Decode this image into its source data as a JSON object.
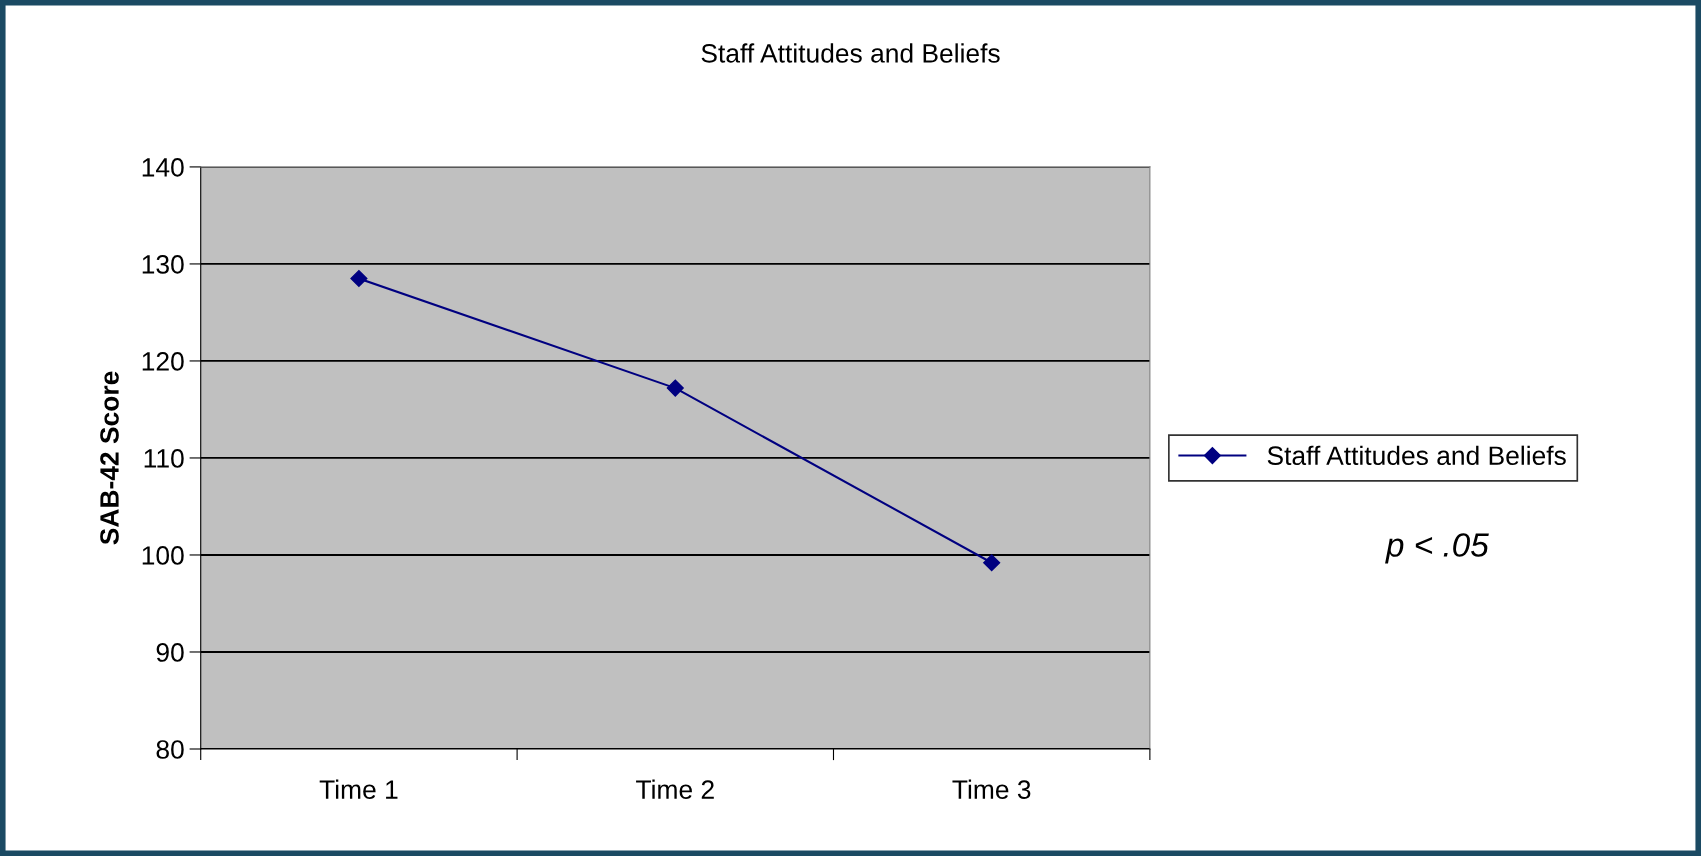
{
  "chart_data": {
    "type": "line",
    "title": "Staff Attitudes and Beliefs",
    "ylabel": "SAB-42 Score",
    "categories": [
      "Time 1",
      "Time 2",
      "Time 3"
    ],
    "series": [
      {
        "name": "Staff Attitudes and Beliefs",
        "color": "#000080",
        "values": [
          128.5,
          117.2,
          99.2
        ]
      }
    ],
    "ylim": [
      80,
      140
    ],
    "yticks": [
      80,
      90,
      100,
      110,
      120,
      130,
      140
    ],
    "grid": "y",
    "legend": "right",
    "marker": "diamond",
    "line_style": "solid",
    "annotations": [
      "p < .05"
    ]
  }
}
